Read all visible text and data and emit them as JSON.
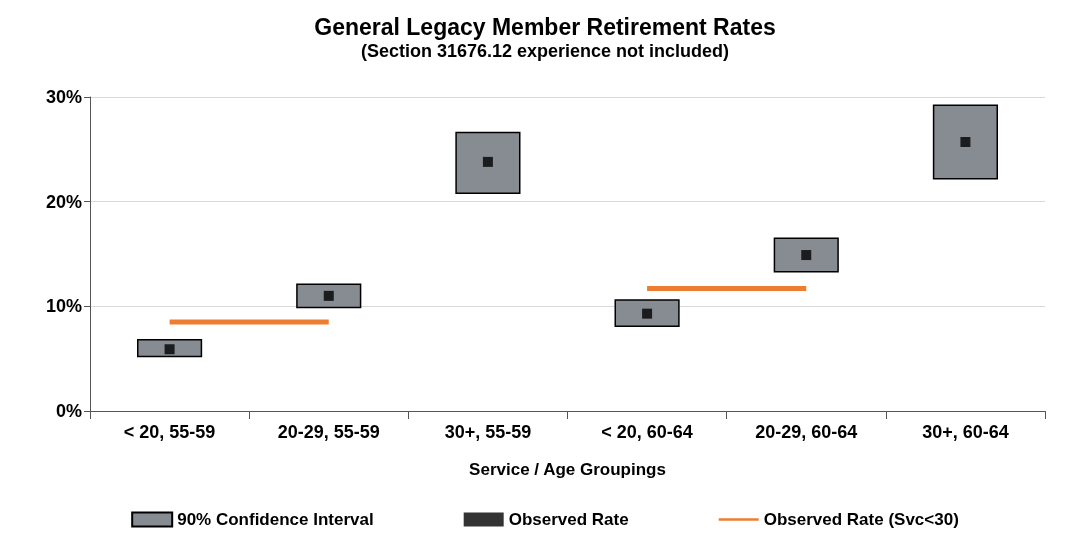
{
  "chart_data": {
    "type": "bar",
    "title": "General Legacy Member Retirement Rates",
    "subtitle": "(Section 31676.12 experience not included)",
    "xlabel": "Service / Age Groupings",
    "categories": [
      "< 20, 55-59",
      "20-29, 55-59",
      "30+, 55-59",
      "< 20, 60-64",
      "20-29, 60-64",
      "30+, 60-64"
    ],
    "series": [
      {
        "name": "90% Confidence Interval",
        "color": "#878b92",
        "base": [
          5.2,
          9.9,
          20.8,
          8.1,
          13.3,
          22.2
        ],
        "values": [
          1.6,
          2.2,
          5.8,
          2.5,
          3.2,
          7.0
        ]
      },
      {
        "name": "Observed Rate",
        "type": "scatter",
        "color": "#000000",
        "marker": "square",
        "values": [
          5.9,
          11.0,
          23.8,
          9.3,
          14.9,
          25.7
        ]
      },
      {
        "name": "Observed Rate (Svc<30)",
        "type": "line",
        "color": "#ed7d31",
        "marker": "none",
        "values": [
          8.5,
          8.5,
          null,
          11.7,
          11.7,
          null
        ]
      }
    ],
    "ylim": [
      0,
      30
    ],
    "yticks": [
      {
        "value": 0,
        "label": "0%"
      },
      {
        "value": 10,
        "label": "10%"
      },
      {
        "value": 20,
        "label": "20%"
      },
      {
        "value": 30,
        "label": "30%"
      }
    ],
    "grid": "y",
    "legend": "bottom"
  }
}
